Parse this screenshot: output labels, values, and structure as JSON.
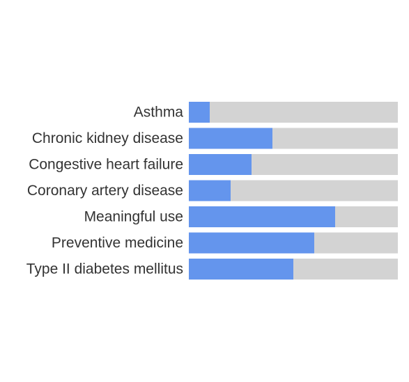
{
  "chart_data": {
    "type": "bar",
    "orientation": "horizontal",
    "style": "progress",
    "categories": [
      "Asthma",
      "Chronic kidney disease",
      "Congestive heart failure",
      "Coronary artery disease",
      "Meaningful use",
      "Preventive medicine",
      "Type II diabetes mellitus"
    ],
    "values": [
      0.1,
      0.4,
      0.3,
      0.2,
      0.7,
      0.6,
      0.5
    ],
    "xlim": [
      0,
      1
    ],
    "colors": {
      "fill": "#6495ED",
      "track": "#D3D3D3",
      "label": "#333333"
    }
  }
}
